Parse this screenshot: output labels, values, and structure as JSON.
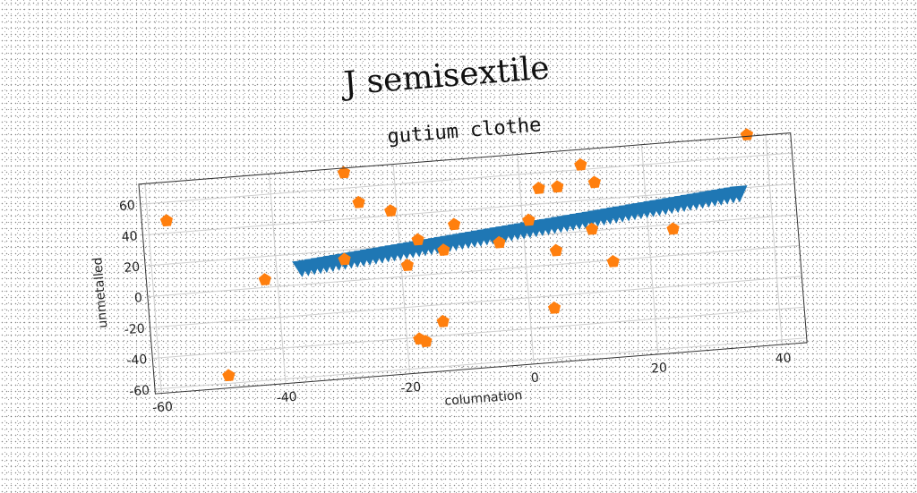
{
  "chart_data": {
    "type": "scatter",
    "title": "J semisextile",
    "subtitle": "gutium clothe",
    "xlabel": "columnation",
    "ylabel": "unmetalled",
    "xlim": [
      -61,
      44
    ],
    "ylim": [
      -63,
      73
    ],
    "xticks": [
      -60,
      -40,
      -20,
      0,
      20,
      40
    ],
    "yticks": [
      -60,
      -40,
      -20,
      0,
      20,
      40,
      60
    ],
    "grid": true,
    "series": [
      {
        "marker": "triangle-down",
        "color": "#1f77b4",
        "x_start": -36,
        "x_end": 35,
        "count": 72,
        "y_start": 10.5,
        "y_end": 36.5
      },
      {
        "marker": "pentagon",
        "color": "#ff7f0e",
        "points": [
          [
            -57,
            48
          ],
          [
            -49,
            -55
          ],
          [
            -42,
            5
          ],
          [
            -29,
            14
          ],
          [
            -28,
            70
          ],
          [
            -26,
            50
          ],
          [
            -21,
            43
          ],
          [
            -19,
            7
          ],
          [
            -18,
            -41
          ],
          [
            -17,
            23
          ],
          [
            -17,
            -43
          ],
          [
            -14,
            -31
          ],
          [
            -13,
            15
          ],
          [
            -11,
            31
          ],
          [
            -4,
            17
          ],
          [
            1,
            30
          ],
          [
            3,
            50
          ],
          [
            4,
            -28
          ],
          [
            5,
            9
          ],
          [
            6,
            50
          ],
          [
            10,
            63
          ],
          [
            11,
            21
          ],
          [
            12,
            51
          ],
          [
            14,
            -1
          ],
          [
            24,
            17
          ],
          [
            37,
            74
          ]
        ]
      }
    ]
  }
}
